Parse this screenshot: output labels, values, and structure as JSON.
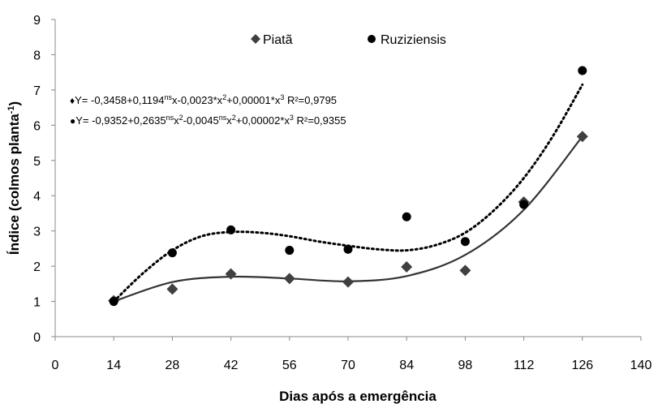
{
  "chart_data": {
    "type": "scatter",
    "xlabel": "Dias após a emergência",
    "ylabel_main": "Índice (colmos planta",
    "ylabel_sup": "-1",
    "ylabel_close": ")",
    "xlim": [
      0,
      140
    ],
    "ylim": [
      0,
      9
    ],
    "xticks": [
      0,
      14,
      28,
      42,
      56,
      70,
      84,
      98,
      112,
      126,
      140
    ],
    "yticks": [
      0,
      1,
      2,
      3,
      4,
      5,
      6,
      7,
      8,
      9
    ],
    "grid": false,
    "legend_position": "top-center",
    "series": [
      {
        "name": "Piatã",
        "marker": "diamond",
        "line_style": "solid",
        "color": "#333333",
        "x": [
          14,
          28,
          42,
          56,
          70,
          84,
          98,
          112,
          126
        ],
        "y": [
          1.02,
          1.35,
          1.78,
          1.65,
          1.55,
          1.98,
          1.88,
          3.82,
          5.68
        ],
        "equation": {
          "marker": "♦",
          "parts": [
            {
              "t": "Y= -0,3458+0,1194"
            },
            {
              "t": "ns",
              "sup": true
            },
            {
              "t": "x-0,0023*x"
            },
            {
              "t": "2",
              "sup": true
            },
            {
              "t": "+0,00001*x"
            },
            {
              "t": "3",
              "sup": true
            },
            {
              "t": "  R²=0,9795"
            }
          ]
        }
      },
      {
        "name": "Ruziziensis",
        "marker": "circle",
        "line_style": "dotted",
        "color": "#000000",
        "x": [
          14,
          28,
          42,
          56,
          70,
          84,
          98,
          112,
          126
        ],
        "y": [
          1.0,
          2.38,
          3.03,
          2.45,
          2.48,
          3.4,
          2.7,
          3.75,
          7.55
        ],
        "equation": {
          "marker": "●",
          "parts": [
            {
              "t": "Y= -0,9352+0,2635"
            },
            {
              "t": "ns",
              "sup": true
            },
            {
              "t": "x"
            },
            {
              "t": "2",
              "sup": true
            },
            {
              "t": "-0,0045"
            },
            {
              "t": "ns",
              "sup": true
            },
            {
              "t": "x"
            },
            {
              "t": "2",
              "sup": true
            },
            {
              "t": "+0,00002*x"
            },
            {
              "t": "3",
              "sup": true
            },
            {
              "t": "   R²=0,9355"
            }
          ]
        }
      }
    ],
    "fit_curves": [
      {
        "name": "Piatã",
        "x": [
          14,
          28,
          42,
          56,
          70,
          84,
          98,
          112,
          126
        ],
        "y": [
          1.0,
          1.55,
          1.7,
          1.65,
          1.57,
          1.72,
          2.32,
          3.6,
          5.68
        ]
      },
      {
        "name": "Ruziziensis",
        "x": [
          14,
          21,
          28,
          35,
          42,
          49,
          56,
          63,
          70,
          77,
          84,
          91,
          98,
          105,
          112,
          119,
          126
        ],
        "y": [
          1.0,
          1.8,
          2.45,
          2.85,
          2.97,
          2.95,
          2.85,
          2.7,
          2.58,
          2.48,
          2.45,
          2.6,
          2.95,
          3.6,
          4.5,
          5.7,
          7.15
        ]
      }
    ]
  }
}
